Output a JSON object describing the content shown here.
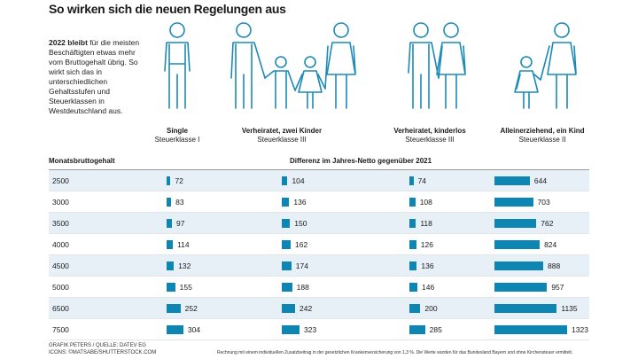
{
  "title": "So wirken sich die neuen Regelungen aus",
  "intro": {
    "bold": "2022 bleibt",
    "text": " für die meisten Beschäftigten etwas mehr vom Bruttogehalt übrig. So wirkt sich das in unterschiedlichen Gehaltsstufen und Steuerklassen in Westdeutschland aus."
  },
  "groups": [
    {
      "name": "Single",
      "class": "Steuerklasse I",
      "icon": "single-man-icon"
    },
    {
      "name": "Verheiratet, zwei Kinder",
      "class": "Steuerklasse III",
      "icon": "family-two-children-icon"
    },
    {
      "name": "Verheiratet, kinderlos",
      "class": "Steuerklasse III",
      "icon": "couple-icon"
    },
    {
      "name": "Alleinerziehend, ein Kind",
      "class": "Steuerklasse II",
      "icon": "single-parent-icon"
    }
  ],
  "colors": {
    "bar": "#0e86b4",
    "row_alt": "#e6f0f6",
    "figure": "#1b8ab5"
  },
  "chart_data": {
    "type": "bar",
    "orientation": "horizontal",
    "xlabel": "Monatsbruttogehalt",
    "ylabel": "Differenz im Jahres-Netto gegenüber 2021",
    "categories": [
      "2500",
      "3000",
      "3500",
      "4000",
      "4500",
      "5000",
      "6500",
      "7500"
    ],
    "series": [
      {
        "name": "Single",
        "values": [
          72,
          83,
          97,
          114,
          132,
          155,
          252,
          304
        ]
      },
      {
        "name": "Verheiratet, zwei Kinder",
        "values": [
          104,
          136,
          150,
          162,
          174,
          188,
          242,
          323
        ]
      },
      {
        "name": "Verheiratet, kinderlos",
        "values": [
          74,
          108,
          118,
          126,
          136,
          146,
          200,
          285
        ]
      },
      {
        "name": "Alleinerziehend, ein Kind",
        "values": [
          644,
          703,
          762,
          824,
          888,
          957,
          1135,
          1323
        ]
      }
    ]
  },
  "credit": [
    "GRAFIK PETERS / QUELLE: DATEV EG",
    "ICONS: ©MATSABE/SHUTTERSTOCK.COM"
  ],
  "note": "Rechnung mit einem individuellen Zusatzbeitrag in der gesetzlichen Krankenversicherung von 1,3 %. Die Werte wurden für das Bundesland Bayern und ohne Kirchensteuer ermittelt."
}
